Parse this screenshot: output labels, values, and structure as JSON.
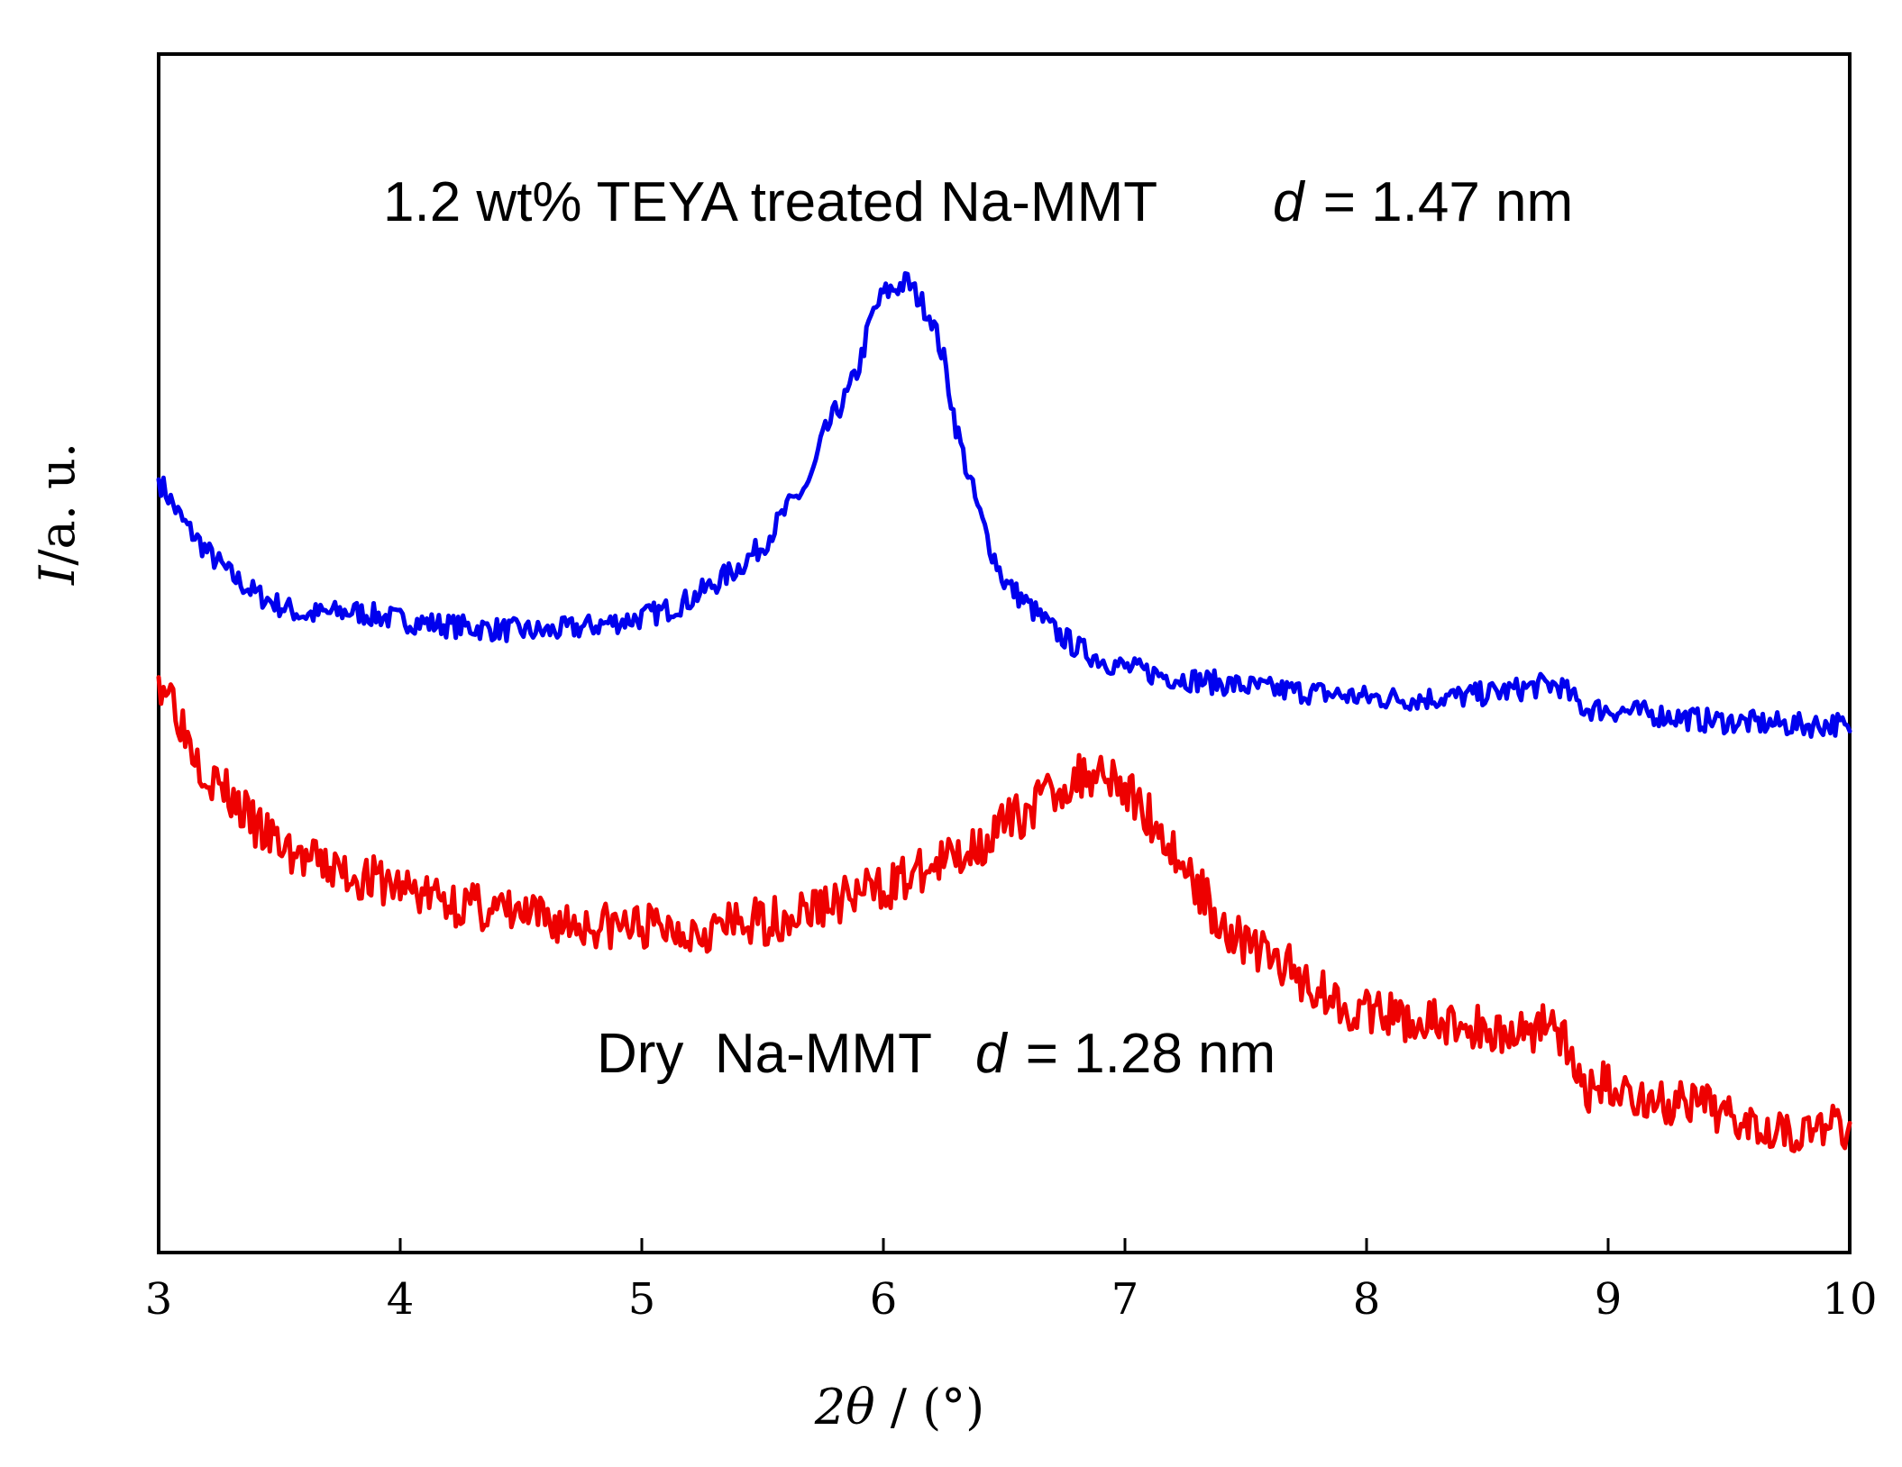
{
  "chart_data": {
    "type": "line",
    "title": "",
    "xlabel_prefix": "2",
    "xlabel_theta": "θ",
    "xlabel_suffix": " / (°)",
    "ylabel_italic": "I",
    "ylabel_rest": "/a. u.",
    "xlim": [
      3,
      10
    ],
    "ylim": [
      0,
      100
    ],
    "x_ticks": [
      3,
      4,
      5,
      6,
      7,
      8,
      9,
      10
    ],
    "x_tick_labels": [
      "3",
      "4",
      "5",
      "6",
      "7",
      "8",
      "9",
      "10"
    ],
    "grid": false,
    "legend": "none",
    "series": [
      {
        "name": "1.2 wt% TEYA treated Na-MMT",
        "color": "#0000ee",
        "noise": 1.0,
        "seed": 7,
        "points": [
          [
            3.0,
            64.5
          ],
          [
            3.1,
            61.0
          ],
          [
            3.2,
            58.5
          ],
          [
            3.3,
            56.5
          ],
          [
            3.4,
            55.0
          ],
          [
            3.5,
            54.0
          ],
          [
            3.6,
            53.2
          ],
          [
            3.8,
            53.5
          ],
          [
            4.0,
            52.8
          ],
          [
            4.2,
            52.3
          ],
          [
            4.4,
            52.0
          ],
          [
            4.6,
            51.8
          ],
          [
            4.8,
            52.3
          ],
          [
            5.0,
            53.0
          ],
          [
            5.1,
            53.6
          ],
          [
            5.2,
            54.5
          ],
          [
            5.3,
            55.8
          ],
          [
            5.4,
            57.2
          ],
          [
            5.5,
            59.0
          ],
          [
            5.6,
            62.0
          ],
          [
            5.7,
            64.5
          ],
          [
            5.75,
            68.0
          ],
          [
            5.8,
            70.0
          ],
          [
            5.85,
            71.5
          ],
          [
            5.9,
            74.0
          ],
          [
            5.95,
            78.0
          ],
          [
            6.0,
            80.0
          ],
          [
            6.05,
            80.5
          ],
          [
            6.1,
            81.0
          ],
          [
            6.15,
            79.5
          ],
          [
            6.2,
            78.0
          ],
          [
            6.25,
            74.5
          ],
          [
            6.3,
            69.0
          ],
          [
            6.35,
            65.0
          ],
          [
            6.4,
            61.5
          ],
          [
            6.45,
            58.5
          ],
          [
            6.5,
            56.0
          ],
          [
            6.6,
            54.0
          ],
          [
            6.7,
            52.0
          ],
          [
            6.8,
            50.5
          ],
          [
            6.9,
            49.5
          ],
          [
            7.0,
            48.8
          ],
          [
            7.2,
            48.0
          ],
          [
            7.4,
            47.5
          ],
          [
            7.6,
            47.0
          ],
          [
            7.8,
            46.7
          ],
          [
            8.0,
            46.3
          ],
          [
            8.2,
            46.2
          ],
          [
            8.4,
            46.4
          ],
          [
            8.6,
            46.9
          ],
          [
            8.75,
            47.4
          ],
          [
            8.8,
            47.3
          ],
          [
            8.9,
            45.4
          ],
          [
            9.0,
            45.3
          ],
          [
            9.2,
            44.9
          ],
          [
            9.4,
            44.4
          ],
          [
            9.6,
            44.2
          ],
          [
            9.8,
            44.0
          ],
          [
            9.95,
            44.1
          ],
          [
            10.0,
            43.5
          ]
        ]
      },
      {
        "name": "Dry Na-MMT",
        "color": "#ee0000",
        "noise": 2.0,
        "seed": 3,
        "points": [
          [
            3.0,
            48.0
          ],
          [
            3.05,
            47.0
          ],
          [
            3.1,
            44.0
          ],
          [
            3.15,
            42.0
          ],
          [
            3.2,
            40.0
          ],
          [
            3.3,
            38.0
          ],
          [
            3.4,
            35.5
          ],
          [
            3.5,
            34.0
          ],
          [
            3.6,
            32.8
          ],
          [
            3.8,
            31.5
          ],
          [
            4.0,
            30.5
          ],
          [
            4.2,
            29.3
          ],
          [
            4.4,
            28.5
          ],
          [
            4.6,
            27.7
          ],
          [
            4.8,
            27.3
          ],
          [
            5.0,
            27.2
          ],
          [
            5.2,
            27.0
          ],
          [
            5.4,
            27.3
          ],
          [
            5.6,
            28.0
          ],
          [
            5.8,
            29.3
          ],
          [
            6.0,
            30.5
          ],
          [
            6.2,
            32.0
          ],
          [
            6.4,
            34.2
          ],
          [
            6.6,
            37.0
          ],
          [
            6.7,
            38.5
          ],
          [
            6.8,
            39.5
          ],
          [
            6.9,
            40.5
          ],
          [
            6.95,
            40.0
          ],
          [
            7.0,
            38.5
          ],
          [
            7.1,
            36.5
          ],
          [
            7.2,
            33.5
          ],
          [
            7.3,
            30.5
          ],
          [
            7.4,
            27.5
          ],
          [
            7.5,
            25.8
          ],
          [
            7.6,
            24.7
          ],
          [
            7.7,
            23.4
          ],
          [
            7.8,
            22.0
          ],
          [
            7.9,
            20.8
          ],
          [
            8.0,
            20.0
          ],
          [
            8.2,
            19.3
          ],
          [
            8.4,
            18.8
          ],
          [
            8.6,
            18.3
          ],
          [
            8.7,
            18.8
          ],
          [
            8.75,
            19.9
          ],
          [
            8.8,
            18.5
          ],
          [
            8.85,
            15.5
          ],
          [
            8.9,
            13.5
          ],
          [
            9.0,
            14.0
          ],
          [
            9.2,
            12.5
          ],
          [
            9.4,
            12.0
          ],
          [
            9.6,
            11.2
          ],
          [
            9.8,
            10.0
          ],
          [
            10.0,
            10.8
          ]
        ]
      }
    ],
    "annotations": [
      {
        "text_before": "1.2 wt% TEYA treated Na-MMT",
        "italic": "d",
        "text_after": "= 1.47 nm"
      },
      {
        "text_before": "Dry  Na-MMT",
        "italic": "d",
        "text_after": "= 1.28 nm"
      }
    ]
  }
}
